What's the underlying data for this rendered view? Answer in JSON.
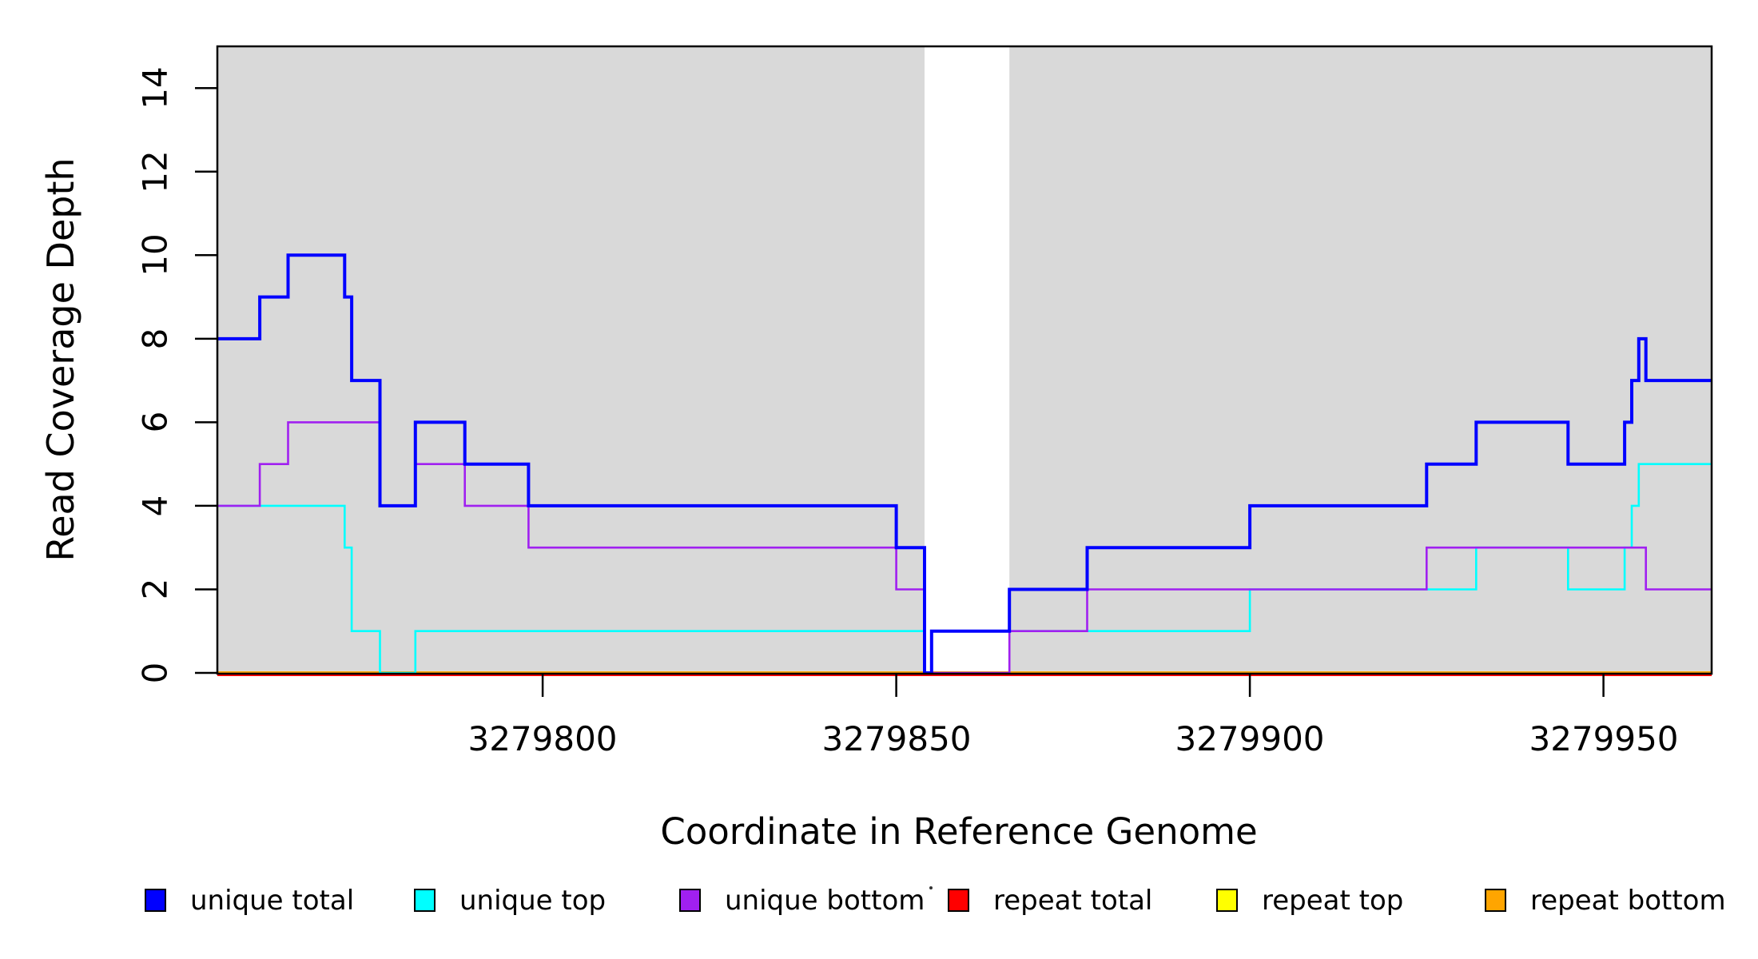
{
  "figure": {
    "x_axis_title": "Coordinate in Reference Genome",
    "y_axis_title": "Read Coverage Depth"
  },
  "chart_data": {
    "type": "line",
    "subtype": "step-function-read-coverage",
    "title": "",
    "xlabel": "Coordinate in Reference Genome",
    "ylabel": "Read Coverage Depth",
    "xlim": [
      3279754,
      3279965.3
    ],
    "ylim": [
      0,
      15
    ],
    "grid": false,
    "x_ticks": [
      3279800,
      3279850,
      3279900,
      3279950
    ],
    "x_tick_labels": [
      "3279800",
      "3279850",
      "3279900",
      "3279950"
    ],
    "y_ticks": [
      0,
      2,
      4,
      6,
      8,
      10,
      12,
      14
    ],
    "y_tick_labels": [
      "0",
      "2",
      "4",
      "6",
      "8",
      "10",
      "12",
      "14"
    ],
    "plot_background_color": "#ffffff",
    "background_regions": [
      {
        "name": "shaded-left",
        "x0": 3279754,
        "x1": 3279854,
        "color": "#d9d9d9"
      },
      {
        "name": "white-gap",
        "x0": 3279854,
        "x1": 3279866,
        "color": "#ffffff"
      },
      {
        "name": "shaded-right",
        "x0": 3279866,
        "x1": 3279965.3,
        "color": "#d9d9d9"
      }
    ],
    "draw_order": [
      "repeat top",
      "repeat total",
      "repeat bottom",
      "unique top",
      "unique bottom",
      "unique total"
    ],
    "series": [
      {
        "name": "unique total",
        "color": "#0000ff",
        "width": 4,
        "points": [
          [
            3279754,
            8
          ],
          [
            3279760,
            9
          ],
          [
            3279764,
            10
          ],
          [
            3279772,
            9
          ],
          [
            3279773,
            7
          ],
          [
            3279777,
            4
          ],
          [
            3279782,
            6
          ],
          [
            3279789,
            5
          ],
          [
            3279798,
            4
          ],
          [
            3279850,
            3
          ],
          [
            3279854,
            0
          ],
          [
            3279855,
            1
          ],
          [
            3279866,
            2
          ],
          [
            3279877,
            3
          ],
          [
            3279900,
            4
          ],
          [
            3279925,
            5
          ],
          [
            3279932,
            6
          ],
          [
            3279945,
            5
          ],
          [
            3279953,
            6
          ],
          [
            3279954,
            7
          ],
          [
            3279955,
            8
          ],
          [
            3279956,
            7
          ],
          [
            3279965.3,
            7
          ]
        ]
      },
      {
        "name": "unique top",
        "color": "#00ffff",
        "width": 2.6,
        "points": [
          [
            3279754,
            4
          ],
          [
            3279772,
            3
          ],
          [
            3279773,
            1
          ],
          [
            3279777,
            0
          ],
          [
            3279782,
            1
          ],
          [
            3279854,
            0
          ],
          [
            3279855,
            1
          ],
          [
            3279900,
            2
          ],
          [
            3279932,
            3
          ],
          [
            3279945,
            2
          ],
          [
            3279953,
            3
          ],
          [
            3279954,
            4
          ],
          [
            3279955,
            5
          ],
          [
            3279965.3,
            5
          ]
        ]
      },
      {
        "name": "unique bottom",
        "color": "#a020f0",
        "width": 2.6,
        "points": [
          [
            3279754,
            4
          ],
          [
            3279760,
            5
          ],
          [
            3279764,
            6
          ],
          [
            3279777,
            4
          ],
          [
            3279782,
            5
          ],
          [
            3279789,
            4
          ],
          [
            3279798,
            3
          ],
          [
            3279850,
            2
          ],
          [
            3279854,
            0
          ],
          [
            3279866,
            1
          ],
          [
            3279877,
            2
          ],
          [
            3279925,
            3
          ],
          [
            3279956,
            2
          ],
          [
            3279965.3,
            2
          ]
        ]
      },
      {
        "name": "repeat total",
        "color": "#ff0000",
        "width": 3,
        "points": [
          [
            3279754,
            0
          ],
          [
            3279965.3,
            0
          ]
        ]
      },
      {
        "name": "repeat top",
        "color": "#ffff00",
        "width": 2.6,
        "points": [
          [
            3279754,
            0
          ],
          [
            3279965.3,
            0
          ]
        ]
      },
      {
        "name": "repeat bottom",
        "color": "#ffa500",
        "width": 4,
        "points": [
          [
            3279754,
            0
          ],
          [
            3279965.3,
            0
          ]
        ]
      }
    ],
    "legend": {
      "position": "bottom",
      "items": [
        {
          "label": "unique total",
          "color": "#0000ff"
        },
        {
          "label": "unique top",
          "color": "#00ffff"
        },
        {
          "label": "unique bottom",
          "color": "#a020f0"
        },
        {
          "label": "repeat total",
          "color": "#ff0000"
        },
        {
          "label": "repeat top",
          "color": "#ffff00"
        },
        {
          "label": "repeat bottom",
          "color": "#ffa500"
        }
      ]
    }
  }
}
